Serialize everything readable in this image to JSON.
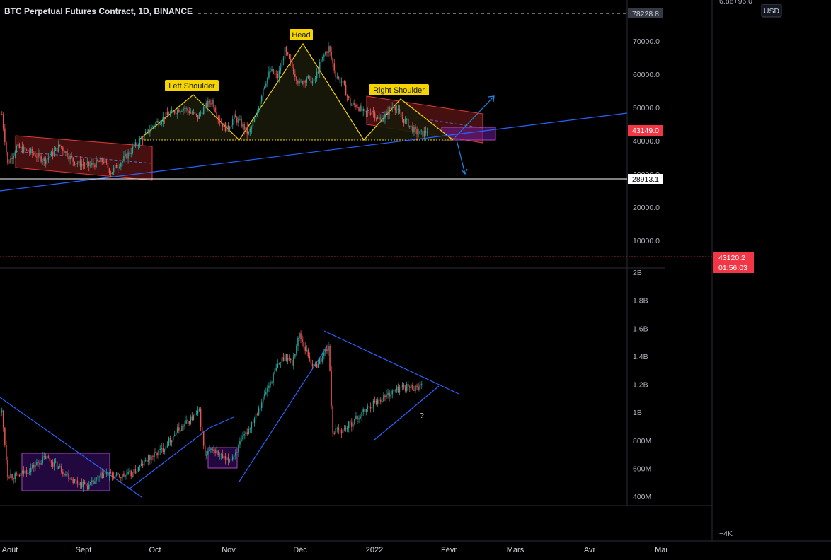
{
  "header": {
    "title": "BTC Perpetual Futures Contract, 1D, BINANCE",
    "currency": "USD",
    "top_scale_label": "6.8e+96.0"
  },
  "price_tags": {
    "high": "78228.8",
    "current": "43149.0",
    "support": "28913.1",
    "last_price": "43120.2",
    "countdown": "01:56:03"
  },
  "colors": {
    "background": "#000000",
    "up": "#26a69a",
    "down": "#ef5350",
    "trendline": "#2962ff",
    "pattern": "#f5d400",
    "label_bg": "#f5d400",
    "channel": "#b71c1c",
    "zone": "#7b1fa2",
    "current_tag": "#f23645"
  },
  "chart_data": [
    {
      "type": "candlestick",
      "pane": "price",
      "ylim": [
        0,
        80000
      ],
      "yticks": [
        "70000.0",
        "60000.0",
        "50000.0",
        "40000.0",
        "30000.0",
        "20000.0",
        "10000.0"
      ],
      "x_labels": [
        "Août",
        "Sept",
        "Oct",
        "Nov",
        "Déc",
        "2022",
        "Févr",
        "Mars",
        "Avr",
        "Mai"
      ],
      "annotations": [
        "Left Shoulder",
        "Head",
        "Right Shoulder"
      ],
      "close_path": [
        [
          0,
          48000
        ],
        [
          4,
          33000
        ],
        [
          10,
          38000
        ],
        [
          20,
          36500
        ],
        [
          30,
          34000
        ],
        [
          40,
          38500
        ],
        [
          50,
          33500
        ],
        [
          60,
          32500
        ],
        [
          70,
          34000
        ],
        [
          75,
          30500
        ],
        [
          85,
          35000
        ],
        [
          95,
          40000
        ],
        [
          105,
          45000
        ],
        [
          115,
          48000
        ],
        [
          125,
          50000
        ],
        [
          135,
          47000
        ],
        [
          140,
          50500
        ],
        [
          145,
          52000
        ],
        [
          150,
          46000
        ],
        [
          155,
          43500
        ],
        [
          160,
          47000
        ],
        [
          165,
          45000
        ],
        [
          170,
          42000
        ],
        [
          175,
          47000
        ],
        [
          180,
          56000
        ],
        [
          185,
          61000
        ],
        [
          190,
          59000
        ],
        [
          195,
          67000
        ],
        [
          200,
          62000
        ],
        [
          205,
          57000
        ],
        [
          210,
          59000
        ],
        [
          215,
          57500
        ],
        [
          220,
          64000
        ],
        [
          225,
          68000
        ],
        [
          230,
          60000
        ],
        [
          235,
          57000
        ],
        [
          240,
          51000
        ],
        [
          245,
          50500
        ],
        [
          250,
          48000
        ],
        [
          255,
          49000
        ],
        [
          260,
          46000
        ],
        [
          265,
          48000
        ],
        [
          270,
          51000
        ],
        [
          275,
          47000
        ],
        [
          280,
          45000
        ],
        [
          285,
          42500
        ],
        [
          290,
          42000
        ],
        [
          293,
          43149
        ]
      ]
    },
    {
      "type": "bar",
      "pane": "volume",
      "ylim": [
        0,
        2000000000
      ],
      "yticks": [
        "2B",
        "1.8B",
        "1.6B",
        "1.4B",
        "1.2B",
        "1B",
        "800M",
        "600M",
        "400M"
      ],
      "annotations": [
        "?"
      ],
      "volume_path": [
        [
          0,
          1000000000
        ],
        [
          4,
          560000000
        ],
        [
          10,
          540000000
        ],
        [
          20,
          600000000
        ],
        [
          30,
          680000000
        ],
        [
          40,
          600000000
        ],
        [
          50,
          510000000
        ],
        [
          60,
          470000000
        ],
        [
          70,
          560000000
        ],
        [
          80,
          540000000
        ],
        [
          90,
          560000000
        ],
        [
          100,
          660000000
        ],
        [
          110,
          730000000
        ],
        [
          120,
          860000000
        ],
        [
          130,
          950000000
        ],
        [
          136,
          1000000000
        ],
        [
          140,
          680000000
        ],
        [
          145,
          740000000
        ],
        [
          150,
          690000000
        ],
        [
          155,
          650000000
        ],
        [
          160,
          700000000
        ],
        [
          170,
          880000000
        ],
        [
          180,
          1100000000
        ],
        [
          190,
          1330000000
        ],
        [
          195,
          1410000000
        ],
        [
          200,
          1350000000
        ],
        [
          205,
          1560000000
        ],
        [
          210,
          1430000000
        ],
        [
          215,
          1320000000
        ],
        [
          220,
          1380000000
        ],
        [
          225,
          1480000000
        ],
        [
          228,
          860000000
        ],
        [
          235,
          870000000
        ],
        [
          245,
          960000000
        ],
        [
          255,
          1060000000
        ],
        [
          265,
          1120000000
        ],
        [
          275,
          1180000000
        ]
      ]
    }
  ],
  "bottom_axis_label": "−4K"
}
